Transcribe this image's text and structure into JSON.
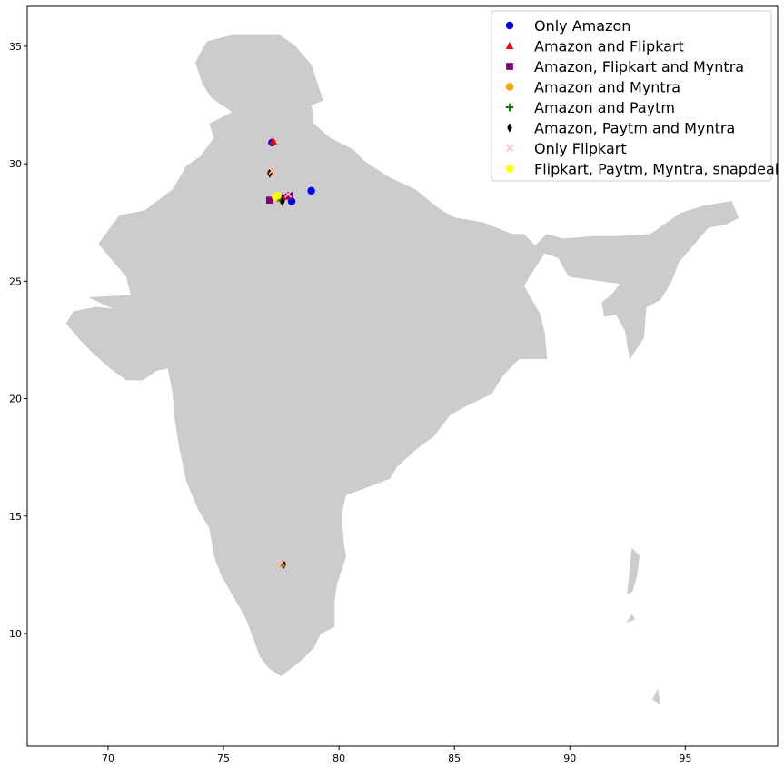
{
  "chart_data": {
    "type": "scatter",
    "title": "",
    "xlabel": "",
    "ylabel": "",
    "xlim": [
      66.5,
      99.0
    ],
    "ylim": [
      5.2,
      36.7
    ],
    "x_ticks": [
      70,
      75,
      80,
      85,
      90,
      95
    ],
    "y_ticks": [
      10,
      15,
      20,
      25,
      30,
      35
    ],
    "grid": false,
    "legend_position": "top-right",
    "basemap": {
      "fill": "#cccccc",
      "outline": [
        [
          74.0,
          34.7
        ],
        [
          74.3,
          35.2
        ],
        [
          75.5,
          35.5
        ],
        [
          77.4,
          35.5
        ],
        [
          78.1,
          35.0
        ],
        [
          78.8,
          34.2
        ],
        [
          79.3,
          32.7
        ],
        [
          78.8,
          32.5
        ],
        [
          78.9,
          31.7
        ],
        [
          79.6,
          31.1
        ],
        [
          80.6,
          30.6
        ],
        [
          81.1,
          30.1
        ],
        [
          82.2,
          29.4
        ],
        [
          83.3,
          28.9
        ],
        [
          84.3,
          28.1
        ],
        [
          85.0,
          27.7
        ],
        [
          86.2,
          27.5
        ],
        [
          87.5,
          27.0
        ],
        [
          88.0,
          27.0
        ],
        [
          88.5,
          26.5
        ],
        [
          89.0,
          27.0
        ],
        [
          89.7,
          26.8
        ],
        [
          91.0,
          26.9
        ],
        [
          92.0,
          26.9
        ],
        [
          93.5,
          27.0
        ],
        [
          94.8,
          27.9
        ],
        [
          95.8,
          28.2
        ],
        [
          97.0,
          28.4
        ],
        [
          97.3,
          27.7
        ],
        [
          96.7,
          27.4
        ],
        [
          96.0,
          27.3
        ],
        [
          95.3,
          26.5
        ],
        [
          94.7,
          25.8
        ],
        [
          94.4,
          25.0
        ],
        [
          93.9,
          24.2
        ],
        [
          93.3,
          23.9
        ],
        [
          93.2,
          22.6
        ],
        [
          92.6,
          21.7
        ],
        [
          92.4,
          22.9
        ],
        [
          92.0,
          23.6
        ],
        [
          91.5,
          23.5
        ],
        [
          91.4,
          24.1
        ],
        [
          91.8,
          24.4
        ],
        [
          92.2,
          24.9
        ],
        [
          90.0,
          25.2
        ],
        [
          89.9,
          25.3
        ],
        [
          89.5,
          26.0
        ],
        [
          88.9,
          26.2
        ],
        [
          88.3,
          25.3
        ],
        [
          88.0,
          24.8
        ],
        [
          88.7,
          23.6
        ],
        [
          88.9,
          22.8
        ],
        [
          89.0,
          21.7
        ],
        [
          88.2,
          21.7
        ],
        [
          87.8,
          21.7
        ],
        [
          87.1,
          21.0
        ],
        [
          86.6,
          20.2
        ],
        [
          85.5,
          19.7
        ],
        [
          84.8,
          19.3
        ],
        [
          84.1,
          18.4
        ],
        [
          83.4,
          17.9
        ],
        [
          82.5,
          17.1
        ],
        [
          82.2,
          16.6
        ],
        [
          81.4,
          16.3
        ],
        [
          80.3,
          15.9
        ],
        [
          80.1,
          15.1
        ],
        [
          80.2,
          13.8
        ],
        [
          80.3,
          13.3
        ],
        [
          79.9,
          12.1
        ],
        [
          79.8,
          11.4
        ],
        [
          79.8,
          10.3
        ],
        [
          79.2,
          10.0
        ],
        [
          78.9,
          9.4
        ],
        [
          78.4,
          8.9
        ],
        [
          77.5,
          8.2
        ],
        [
          77.0,
          8.5
        ],
        [
          76.6,
          9.0
        ],
        [
          76.3,
          9.8
        ],
        [
          76.0,
          10.6
        ],
        [
          75.6,
          11.3
        ],
        [
          74.9,
          12.5
        ],
        [
          74.6,
          13.3
        ],
        [
          74.4,
          14.5
        ],
        [
          73.9,
          15.3
        ],
        [
          73.4,
          16.5
        ],
        [
          73.1,
          17.9
        ],
        [
          72.9,
          19.1
        ],
        [
          72.8,
          20.3
        ],
        [
          72.6,
          21.3
        ],
        [
          72.1,
          21.2
        ],
        [
          71.5,
          20.8
        ],
        [
          70.8,
          20.8
        ],
        [
          70.1,
          21.3
        ],
        [
          69.3,
          22.0
        ],
        [
          68.8,
          22.5
        ],
        [
          68.2,
          23.2
        ],
        [
          68.5,
          23.7
        ],
        [
          69.5,
          23.9
        ],
        [
          70.3,
          23.8
        ],
        [
          69.2,
          24.3
        ],
        [
          71.0,
          24.4
        ],
        [
          70.8,
          25.2
        ],
        [
          70.1,
          26.0
        ],
        [
          69.6,
          26.6
        ],
        [
          70.5,
          27.8
        ],
        [
          71.6,
          28.0
        ],
        [
          72.8,
          28.9
        ],
        [
          73.4,
          29.9
        ],
        [
          74.0,
          30.3
        ],
        [
          74.6,
          31.1
        ],
        [
          74.4,
          31.7
        ],
        [
          75.4,
          32.2
        ],
        [
          74.5,
          32.8
        ],
        [
          74.1,
          33.4
        ],
        [
          73.8,
          34.3
        ],
        [
          74.0,
          34.7
        ]
      ],
      "islands": [
        [
          [
            92.7,
            13.6
          ],
          [
            93.0,
            13.3
          ],
          [
            92.9,
            12.5
          ],
          [
            92.7,
            11.8
          ],
          [
            92.5,
            11.7
          ],
          [
            92.6,
            12.6
          ],
          [
            92.7,
            13.6
          ]
        ],
        [
          [
            92.7,
            10.8
          ],
          [
            92.8,
            10.6
          ],
          [
            92.5,
            10.5
          ],
          [
            92.7,
            10.8
          ]
        ],
        [
          [
            93.8,
            7.6
          ],
          [
            93.9,
            7.0
          ],
          [
            93.6,
            7.2
          ],
          [
            93.8,
            7.6
          ]
        ]
      ]
    },
    "series": [
      {
        "name": "Only Amazon",
        "color": "#0000ff",
        "marker": "circle",
        "points": [
          [
            78.8,
            28.85
          ],
          [
            77.95,
            28.4
          ],
          [
            77.1,
            30.9
          ],
          [
            77.5,
            28.55
          ]
        ]
      },
      {
        "name": "Amazon and Flipkart",
        "color": "#ff0000",
        "marker": "triangle",
        "points": [
          [
            77.15,
            30.95
          ],
          [
            77.7,
            28.6
          ]
        ]
      },
      {
        "name": "Amazon, Flipkart and Myntra",
        "color": "#800080",
        "marker": "square",
        "points": [
          [
            77.0,
            28.45
          ],
          [
            77.85,
            28.65
          ]
        ]
      },
      {
        "name": "Amazon and Myntra",
        "color": "#ffa500",
        "marker": "circle",
        "points": [
          [
            77.55,
            12.95
          ],
          [
            77.05,
            29.65
          ],
          [
            77.4,
            28.5
          ]
        ]
      },
      {
        "name": "Amazon and Paytm",
        "color": "#008000",
        "marker": "plus",
        "points": [
          [
            77.5,
            28.45
          ]
        ]
      },
      {
        "name": "Amazon, Paytm and Myntra",
        "color": "#000000",
        "marker": "diamond",
        "points": [
          [
            77.0,
            29.6
          ],
          [
            77.55,
            28.4
          ],
          [
            77.6,
            12.95
          ]
        ]
      },
      {
        "name": "Only Flipkart",
        "color": "#ffc0cb",
        "marker": "x",
        "points": [
          [
            77.1,
            29.7
          ],
          [
            77.8,
            28.7
          ],
          [
            77.5,
            13.0
          ]
        ]
      },
      {
        "name": "Flipkart, Paytm, Myntra, snapdeal",
        "color": "#ffff00",
        "marker": "circle",
        "points": [
          [
            77.25,
            28.6
          ],
          [
            77.35,
            28.65
          ]
        ]
      }
    ]
  }
}
